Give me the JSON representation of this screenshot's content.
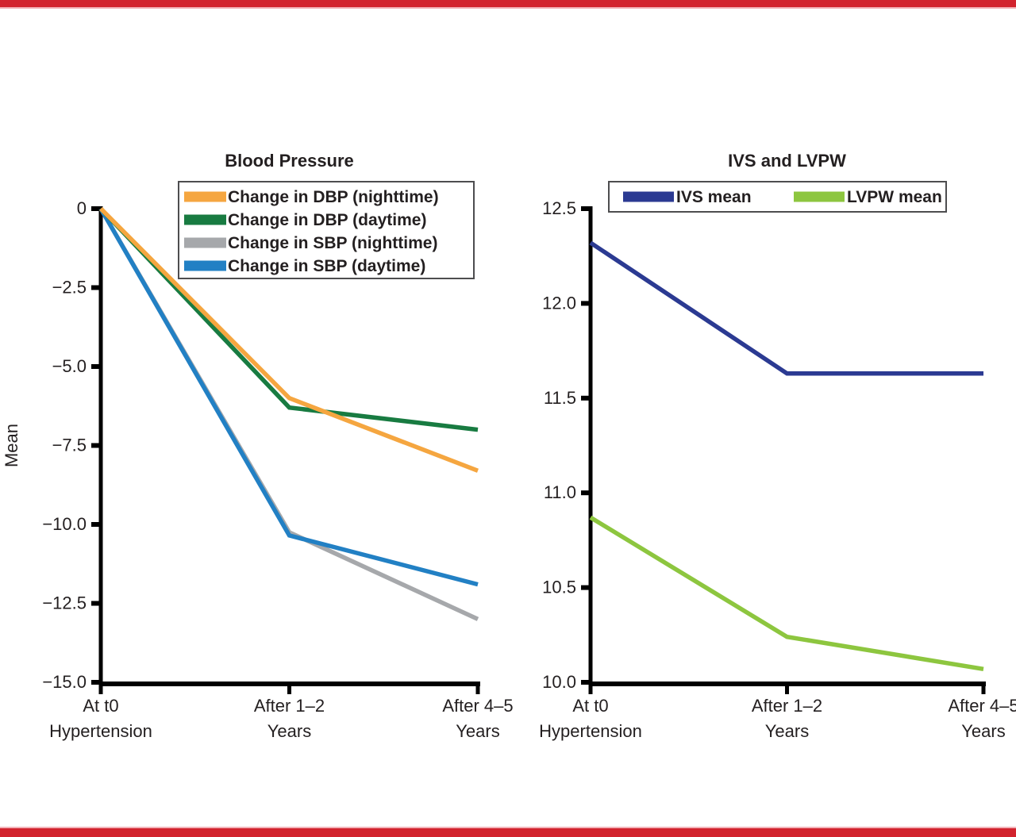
{
  "page": {
    "background": "#FFFFFF",
    "top_border_color": "#D2232E",
    "top_border_accent": "#F3B3B9",
    "bottom_border_color": "#D2232E",
    "bottom_border_accent": "#F3B3B9",
    "text_color": "#231F20",
    "axis_color": "#000000",
    "legend_border_color": "#4D4D4F"
  },
  "chart_data": [
    {
      "type": "line",
      "title": "Blood Pressure",
      "xlabel": "",
      "ylabel": "Mean",
      "categories": [
        [
          "At t0",
          "Hypertension"
        ],
        [
          "After 1–2",
          "Years"
        ],
        [
          "After 4–5",
          "Years"
        ]
      ],
      "ylim": [
        -15,
        0
      ],
      "yticks": [
        {
          "value": 0,
          "label": "0"
        },
        {
          "value": -2.5,
          "label": "−2.5"
        },
        {
          "value": -5,
          "label": "−5.0"
        },
        {
          "value": -7.5,
          "label": "−7.5"
        },
        {
          "value": -10,
          "label": "−10.0"
        },
        {
          "value": -12.5,
          "label": "−12.5"
        },
        {
          "value": -15,
          "label": "−15.0"
        }
      ],
      "grid": false,
      "legend": {
        "boxed": true,
        "orientation": "vertical",
        "position": "top-right-inside"
      },
      "series": [
        {
          "name": "Change in DBP (nighttime)",
          "color": "#F5A640",
          "values": [
            0,
            -6.0,
            -8.3
          ]
        },
        {
          "name": "Change in DBP (daytime)",
          "color": "#187B41",
          "values": [
            0,
            -6.3,
            -7.0
          ]
        },
        {
          "name": "Change in SBP (nighttime)",
          "color": "#A6A8AB",
          "values": [
            0,
            -10.25,
            -13.0
          ]
        },
        {
          "name": "Change in SBP (daytime)",
          "color": "#2280C4",
          "values": [
            0,
            -10.35,
            -11.9
          ]
        }
      ],
      "draw_order": [
        2,
        3,
        1,
        0
      ]
    },
    {
      "type": "line",
      "title": "IVS and LVPW",
      "xlabel": "",
      "ylabel": "",
      "categories": [
        [
          "At t0",
          "Hypertension"
        ],
        [
          "After 1–2",
          "Years"
        ],
        [
          "After 4–5",
          "Years"
        ]
      ],
      "ylim": [
        10,
        12.5
      ],
      "yticks": [
        {
          "value": 12.5,
          "label": "12.5"
        },
        {
          "value": 12,
          "label": "12.0"
        },
        {
          "value": 11.5,
          "label": "11.5"
        },
        {
          "value": 11,
          "label": "11.0"
        },
        {
          "value": 10.5,
          "label": "10.5"
        },
        {
          "value": 10,
          "label": "10.0"
        }
      ],
      "grid": false,
      "legend": {
        "boxed": true,
        "orientation": "horizontal",
        "position": "top-inside"
      },
      "series": [
        {
          "name": "IVS mean",
          "color": "#2B3A92",
          "values": [
            12.32,
            11.63,
            11.63
          ]
        },
        {
          "name": "LVPW mean",
          "color": "#8DC63F",
          "values": [
            10.87,
            10.24,
            10.07
          ]
        }
      ],
      "draw_order": [
        0,
        1
      ]
    }
  ]
}
